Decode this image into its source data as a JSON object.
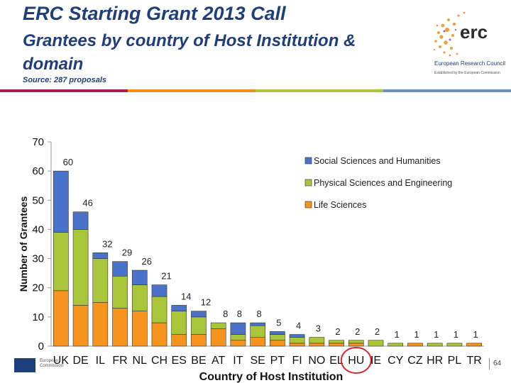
{
  "header": {
    "title": "ERC Starting Grant 2013 Call",
    "subtitle": "Grantees by country of Host Institution & domain",
    "source": "Source: 287 proposals"
  },
  "logo": {
    "text": "erc",
    "name": "European Research Council",
    "tagline": "Established by the European Commission"
  },
  "band_colors": [
    "#a51c57",
    "#f28e1c",
    "#a9c63a",
    "#6e8fce"
  ],
  "footer": {
    "commission_label": "European Commission",
    "page_number": "64"
  },
  "chart_data": {
    "type": "bar",
    "stacked": true,
    "title": "",
    "xlabel": "Country of Host Institution",
    "ylabel": "Number of Grantees",
    "ylim": [
      0,
      70
    ],
    "yticks": [
      0,
      10,
      20,
      30,
      40,
      50,
      60,
      70
    ],
    "grid": false,
    "legend_position": "top-right",
    "categories": [
      "UK",
      "DE",
      "IL",
      "FR",
      "NL",
      "CH",
      "ES",
      "BE",
      "AT",
      "IT",
      "SE",
      "PT",
      "FI",
      "NO",
      "EL",
      "HU",
      "IE",
      "CY",
      "CZ",
      "HR",
      "PL",
      "TR"
    ],
    "totals": [
      60,
      46,
      32,
      29,
      26,
      21,
      14,
      12,
      8,
      8,
      8,
      5,
      4,
      3,
      2,
      2,
      2,
      1,
      1,
      1,
      1,
      1
    ],
    "series": [
      {
        "name": "Life Sciences",
        "color": "#f7941d",
        "values": [
          19,
          14,
          15,
          13,
          12,
          8,
          4,
          4,
          6,
          2,
          3,
          2,
          1,
          1,
          1,
          1,
          0,
          0,
          1,
          0,
          0,
          1
        ]
      },
      {
        "name": "Physical Sciences and Engineering",
        "color": "#a9c63a",
        "values": [
          20,
          26,
          15,
          11,
          9,
          9,
          8,
          6,
          2,
          2,
          4,
          2,
          2,
          2,
          1,
          1,
          2,
          1,
          0,
          1,
          1,
          0
        ]
      },
      {
        "name": "Social Sciences and Humanities",
        "color": "#4a72c9",
        "values": [
          21,
          6,
          2,
          5,
          5,
          4,
          2,
          2,
          0,
          4,
          1,
          1,
          1,
          0,
          0,
          0,
          0,
          0,
          0,
          0,
          0,
          0
        ]
      }
    ],
    "legend_order": [
      "Social Sciences and Humanities",
      "Physical Sciences and Engineering",
      "Life Sciences"
    ],
    "highlight": {
      "category": "HU",
      "style": "red-circle"
    }
  }
}
